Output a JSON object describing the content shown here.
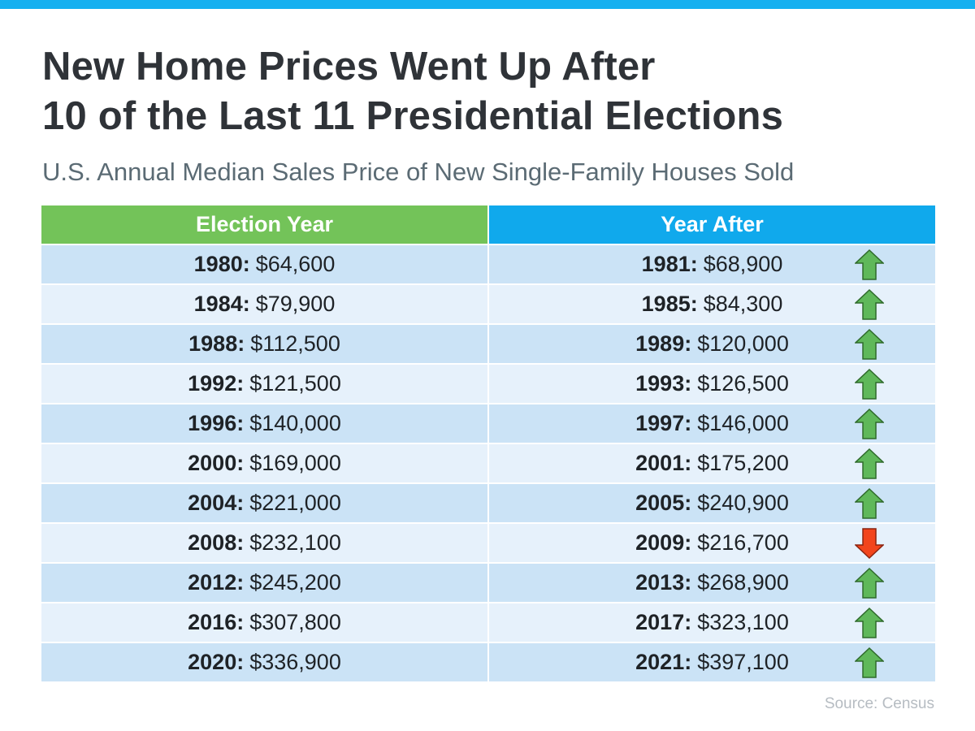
{
  "title_line1": "New Home Prices Went Up After",
  "title_line2": "10 of the Last 11 Presidential Elections",
  "subtitle": "U.S. Annual Median Sales Price of New Single-Family Houses Sold",
  "source": "Source:  Census",
  "colors": {
    "top_bar": "#16b0f0",
    "header_left": "#73c359",
    "header_right": "#10a9ec",
    "row_dark": "#cbe3f6",
    "row_light": "#e6f1fb",
    "arrow_up": "#5fb85a",
    "arrow_down": "#f2451c"
  },
  "chart_data": {
    "type": "table",
    "columns": [
      "Election Year",
      "Year After"
    ],
    "rows": [
      {
        "election_year": "1980",
        "election_price": "$64,600",
        "after_year": "1981",
        "after_price": "$68,900",
        "direction": "up"
      },
      {
        "election_year": "1984",
        "election_price": "$79,900",
        "after_year": "1985",
        "after_price": "$84,300",
        "direction": "up"
      },
      {
        "election_year": "1988",
        "election_price": "$112,500",
        "after_year": "1989",
        "after_price": "$120,000",
        "direction": "up"
      },
      {
        "election_year": "1992",
        "election_price": "$121,500",
        "after_year": "1993",
        "after_price": "$126,500",
        "direction": "up"
      },
      {
        "election_year": "1996",
        "election_price": "$140,000",
        "after_year": "1997",
        "after_price": "$146,000",
        "direction": "up"
      },
      {
        "election_year": "2000",
        "election_price": "$169,000",
        "after_year": "2001",
        "after_price": "$175,200",
        "direction": "up"
      },
      {
        "election_year": "2004",
        "election_price": "$221,000",
        "after_year": "2005",
        "after_price": "$240,900",
        "direction": "up"
      },
      {
        "election_year": "2008",
        "election_price": "$232,100",
        "after_year": "2009",
        "after_price": "$216,700",
        "direction": "down"
      },
      {
        "election_year": "2012",
        "election_price": "$245,200",
        "after_year": "2013",
        "after_price": "$268,900",
        "direction": "up"
      },
      {
        "election_year": "2016",
        "election_price": "$307,800",
        "after_year": "2017",
        "after_price": "$323,100",
        "direction": "up"
      },
      {
        "election_year": "2020",
        "election_price": "$336,900",
        "after_year": "2021",
        "after_price": "$397,100",
        "direction": "up"
      }
    ]
  }
}
